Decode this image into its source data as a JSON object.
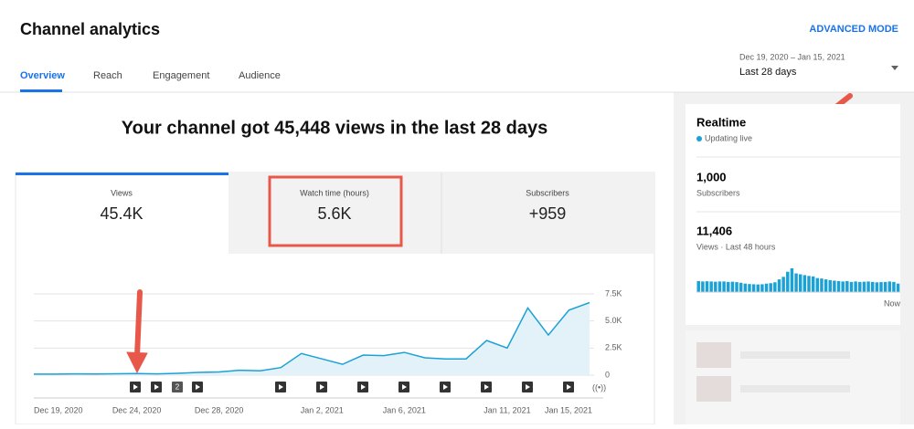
{
  "header": {
    "title": "Channel analytics",
    "advanced_mode": "ADVANCED MODE",
    "tabs": [
      "Overview",
      "Reach",
      "Engagement",
      "Audience"
    ],
    "date_range": {
      "range": "Dec 19, 2020 – Jan 15, 2021",
      "period": "Last 28 days"
    }
  },
  "headline": "Your channel got 45,448 views in the last 28 days",
  "metrics": [
    {
      "label": "Views",
      "value": "45.4K"
    },
    {
      "label": "Watch time (hours)",
      "value": "5.6K"
    },
    {
      "label": "Subscribers",
      "value": "+959"
    }
  ],
  "chart_data": {
    "type": "line",
    "color": "#1aa1d6",
    "categories": [
      "Dec 19, 2020",
      null,
      null,
      null,
      null,
      "Dec 24, 2020",
      null,
      null,
      null,
      "Dec 28, 2020",
      null,
      null,
      null,
      null,
      "Jan 2, 2021",
      null,
      null,
      null,
      "Jan 6, 2021",
      null,
      null,
      null,
      null,
      "Jan 11, 2021",
      null,
      null,
      null,
      "Jan 15, 2021"
    ],
    "values": [
      100,
      100,
      120,
      110,
      130,
      150,
      120,
      170,
      250,
      300,
      450,
      400,
      700,
      2000,
      1500,
      1000,
      1850,
      1800,
      2100,
      1600,
      1500,
      1500,
      3200,
      2500,
      6200,
      3700,
      6000,
      6700
    ],
    "ylim": [
      0,
      7500
    ],
    "yticks": [
      0,
      {
        "value": 2500,
        "label": "2.5K"
      },
      {
        "value": 5000,
        "label": "5.0K"
      },
      {
        "value": 7500,
        "label": "7.5K"
      }
    ],
    "grid": true,
    "marker_labels": [
      "2"
    ]
  },
  "realtime": {
    "title": "Realtime",
    "status": "Updating live",
    "subscribers": {
      "value": "1,000",
      "label": "Subscribers"
    },
    "views": {
      "value": "11,406",
      "label": "Views · Last 48 hours"
    },
    "bars": {
      "type": "bar",
      "color": "#1aa1d6",
      "values": [
        260,
        250,
        255,
        250,
        245,
        250,
        250,
        240,
        245,
        235,
        220,
        200,
        190,
        185,
        180,
        185,
        200,
        210,
        230,
        300,
        360,
        480,
        560,
        440,
        420,
        400,
        380,
        370,
        330,
        320,
        300,
        280,
        270,
        260,
        250,
        260,
        240,
        250,
        240,
        245,
        250,
        240,
        230,
        235,
        240,
        250,
        240,
        200
      ],
      "x_label": "Now"
    }
  }
}
